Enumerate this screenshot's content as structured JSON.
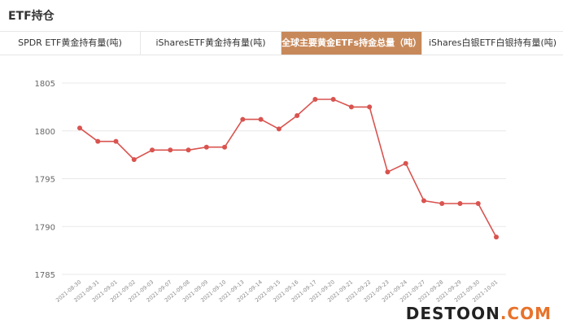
{
  "header": {
    "title": "ETF持仓"
  },
  "tabs": [
    {
      "label": "SPDR ETF黄金持有量(吨)",
      "active": false
    },
    {
      "label": "iSharesETF黄金持有量(吨)",
      "active": false
    },
    {
      "label": "全球主要黄金ETFs持金总量（吨）",
      "active": true
    },
    {
      "label": "iShares白银ETF白银持有量(吨)",
      "active": false
    }
  ],
  "colors": {
    "accent": "#c8895a",
    "line": "#d9534f",
    "grid": "#e8e8e8",
    "axis_text": "#666666",
    "watermark_main": "#222222",
    "watermark_accent": "#e8722a"
  },
  "watermark": {
    "part1": "DESTOON",
    "part2": ".COM"
  },
  "chart_data": {
    "type": "line",
    "x": [
      "2021-08-30",
      "2021-08-31",
      "2021-09-01",
      "2021-09-02",
      "2021-09-03",
      "2021-09-07",
      "2021-09-08",
      "2021-09-09",
      "2021-09-10",
      "2021-09-13",
      "2021-09-14",
      "2021-09-15",
      "2021-09-16",
      "2021-09-17",
      "2021-09-20",
      "2021-09-21",
      "2021-09-22",
      "2021-09-23",
      "2021-09-24",
      "2021-09-27",
      "2021-09-28",
      "2021-09-29",
      "2021-09-30",
      "2021-10-01"
    ],
    "series": [
      {
        "values": [
          1800.3,
          1798.9,
          1798.9,
          1797.0,
          1798.0,
          1798.0,
          1798.0,
          1798.3,
          1798.3,
          1801.2,
          1801.2,
          1800.2,
          1801.6,
          1803.3,
          1803.3,
          1802.5,
          1802.5,
          1795.7,
          1796.6,
          1792.7,
          1792.4,
          1792.4,
          1792.4,
          1788.9
        ]
      }
    ],
    "yticks": [
      1805,
      1800,
      1795,
      1790,
      1785
    ],
    "ylim": [
      1785,
      1805
    ],
    "grid": true
  }
}
